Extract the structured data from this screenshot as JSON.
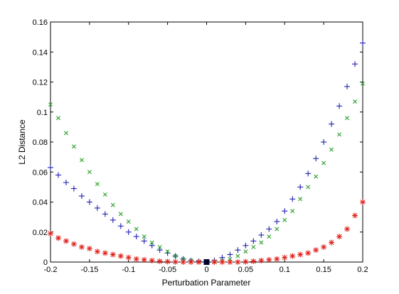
{
  "chart_data": {
    "type": "scatter",
    "title": "",
    "xlabel": "Perturbation Parameter",
    "ylabel": "L2 Distance",
    "xlim": [
      -0.2,
      0.2
    ],
    "ylim": [
      0,
      0.16
    ],
    "xticks": [
      "-0.2",
      "-0.15",
      "-0.1",
      "-0.05",
      "0",
      "0.05",
      "0.1",
      "0.15",
      "0.2"
    ],
    "yticks": [
      "0",
      "0.02",
      "0.04",
      "0.06",
      "0.08",
      "0.1",
      "0.12",
      "0.14",
      "0.16"
    ],
    "grid": false,
    "legend": "none",
    "x": [
      -0.2,
      -0.19,
      -0.18,
      -0.17,
      -0.16,
      -0.15,
      -0.14,
      -0.13,
      -0.12,
      -0.11,
      -0.1,
      -0.09,
      -0.08,
      -0.07,
      -0.06,
      -0.05,
      -0.04,
      -0.03,
      -0.02,
      -0.01,
      0,
      0.01,
      0.02,
      0.03,
      0.04,
      0.05,
      0.06,
      0.07,
      0.08,
      0.09,
      0.1,
      0.11,
      0.12,
      0.13,
      0.14,
      0.15,
      0.16,
      0.17,
      0.18,
      0.19,
      0.2
    ],
    "series": [
      {
        "marker": "plus",
        "color": "#1f1fb4",
        "values": [
          0.063,
          0.058,
          0.053,
          0.049,
          0.044,
          0.04,
          0.036,
          0.032,
          0.028,
          0.024,
          0.02,
          0.017,
          0.014,
          0.011,
          0.008,
          0.006,
          0.004,
          0.002,
          0.001,
          0.0005,
          0,
          0.001,
          0.003,
          0.005,
          0.008,
          0.011,
          0.014,
          0.018,
          0.022,
          0.027,
          0.034,
          0.042,
          0.05,
          0.059,
          0.069,
          0.08,
          0.092,
          0.104,
          0.117,
          0.132,
          0.146
        ]
      },
      {
        "marker": "x",
        "color": "#2ca02c",
        "values": [
          0.105,
          0.096,
          0.086,
          0.077,
          0.068,
          0.06,
          0.052,
          0.045,
          0.038,
          0.032,
          0.027,
          0.022,
          0.017,
          0.013,
          0.01,
          0.007,
          0.004,
          0.002,
          0.001,
          0.0003,
          0,
          0.0005,
          0.001,
          0.002,
          0.004,
          0.007,
          0.01,
          0.013,
          0.017,
          0.022,
          0.028,
          0.034,
          0.042,
          0.05,
          0.057,
          0.066,
          0.075,
          0.085,
          0.096,
          0.107,
          0.119
        ]
      },
      {
        "marker": "asterisk",
        "color": "#e0201b",
        "values": [
          0.019,
          0.016,
          0.014,
          0.012,
          0.01,
          0.009,
          0.007,
          0.006,
          0.005,
          0.004,
          0.003,
          0.002,
          0.0015,
          0.001,
          0.0005,
          0.0003,
          0.0001,
          0,
          0,
          0,
          0,
          0,
          0,
          0,
          0,
          0.0002,
          0.0005,
          0.001,
          0.0015,
          0.002,
          0.003,
          0.004,
          0.005,
          0.006,
          0.008,
          0.01,
          0.013,
          0.017,
          0.022,
          0.031,
          0.04
        ]
      }
    ],
    "highlight": {
      "x": 0,
      "y": 0,
      "marker": "square",
      "color": "#000033"
    }
  }
}
